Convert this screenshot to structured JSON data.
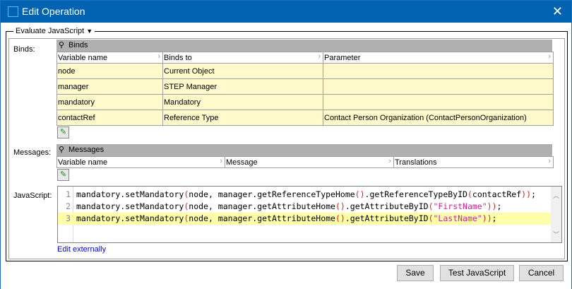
{
  "window": {
    "title": "Edit Operation",
    "close": "✕"
  },
  "group": {
    "label": "Evaluate JavaScript",
    "dropdown": "▼"
  },
  "binds": {
    "label": "Binds:",
    "header": "Binds",
    "columns": [
      "Variable name",
      "Binds to",
      "Parameter"
    ],
    "rows": [
      [
        "node",
        "Current Object",
        ""
      ],
      [
        "manager",
        "STEP Manager",
        ""
      ],
      [
        "mandatory",
        "Mandatory",
        ""
      ],
      [
        "contactRef",
        "Reference Type",
        "Contact Person Organization (ContactPersonOrganization)"
      ]
    ]
  },
  "messages": {
    "label": "Messages:",
    "header": "Messages",
    "columns": [
      "Variable name",
      "Message",
      "Translations"
    ]
  },
  "javascript": {
    "label": "JavaScript:",
    "lines": [
      "mandatory.setMandatory(node, manager.getReferenceTypeHome().getReferenceTypeByID(contactRef));",
      "mandatory.setMandatory(node, manager.getAttributeHome().getAttributeByID(\"FirstName\"));",
      "mandatory.setMandatory(node, manager.getAttributeHome().getAttributeByID(\"LastName\"));"
    ],
    "edit_externally": "Edit externally"
  },
  "buttons": {
    "save": "Save",
    "test": "Test JavaScript",
    "cancel": "Cancel"
  }
}
